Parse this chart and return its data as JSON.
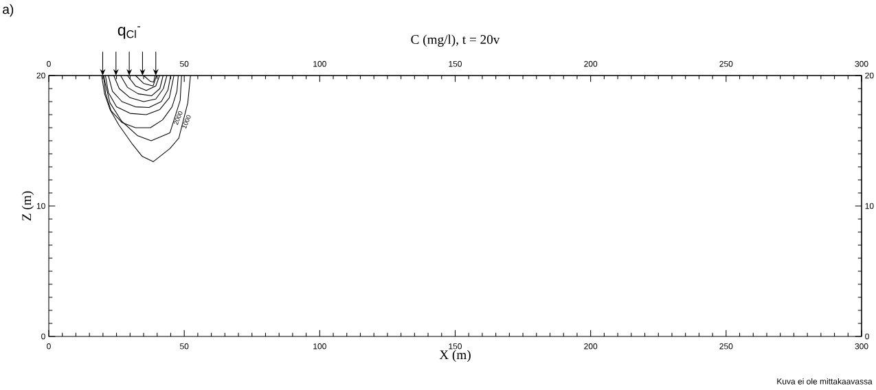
{
  "chart_data": {
    "type": "line",
    "title": "C (mg/l), t = 20v",
    "xlabel": "X (m)",
    "ylabel": "Z (m)",
    "xlim": [
      0,
      300
    ],
    "xticks": [
      0,
      50,
      100,
      150,
      200,
      250,
      300
    ],
    "x2lim": [
      0,
      300
    ],
    "x2ticks": [
      0,
      50,
      100,
      150,
      200,
      250,
      300
    ],
    "ylim": [
      0,
      20
    ],
    "yticks": [
      0,
      10,
      20
    ],
    "y2lim": [
      0,
      20
    ],
    "y2ticks": [
      0,
      10,
      20
    ],
    "legend": false,
    "grid": false,
    "marker": "none",
    "line_style": "solid",
    "annotations": [
      "a)",
      {
        "text": "q$_{Cl}$$^{-}$",
        "x": 29.7,
        "y": 20
      },
      "Kuva ei ole mittakaavassa"
    ],
    "series": [
      {
        "name": "1000",
        "color": "#000000",
        "x": [
          19.5,
          20.6,
          22.6,
          25.9,
          31,
          34.5,
          38.6,
          44.7,
          48,
          51.3,
          52.3
        ],
        "values": [
          20,
          18.6,
          17.4,
          16.2,
          14.7,
          13.8,
          13.4,
          14.4,
          15.2,
          17.9,
          20
        ]
      },
      {
        "name": "2000",
        "color": "#000000",
        "x": [
          20.3,
          20.6,
          22.6,
          26.9,
          32.7,
          37.8,
          44.7,
          48.5,
          49
        ],
        "values": [
          20,
          19.6,
          17.9,
          16.5,
          15.4,
          15.0,
          15.6,
          18.1,
          20
        ]
      },
      {
        "color": "#000000",
        "x": [
          20.2,
          21,
          23,
          27,
          32,
          37.5,
          42,
          45.5,
          47.3,
          47.8
        ],
        "values": [
          20,
          18.6,
          17.3,
          16.4,
          16.0,
          16.0,
          16.6,
          17.6,
          18.8,
          20
        ]
      },
      {
        "color": "#000000",
        "x": [
          20.9,
          22,
          25,
          30,
          36,
          41,
          44.5,
          46.2
        ],
        "values": [
          20,
          18.7,
          17.6,
          17.1,
          17.0,
          17.4,
          18.3,
          20
        ]
      },
      {
        "color": "#000000",
        "x": [
          22,
          23.5,
          27,
          32,
          37,
          41.5,
          44,
          45
        ],
        "values": [
          20,
          18.8,
          18.0,
          17.6,
          17.55,
          18.0,
          18.9,
          20
        ]
      },
      {
        "color": "#000000",
        "x": [
          24,
          26,
          30,
          35,
          39.5,
          42.3,
          43.6
        ],
        "values": [
          20,
          19.0,
          18.3,
          18.0,
          18.2,
          19.0,
          20
        ]
      },
      {
        "color": "#000000",
        "x": [
          26.5,
          29,
          33,
          38,
          41,
          42.2
        ],
        "values": [
          20,
          19.1,
          18.6,
          18.45,
          19.0,
          20
        ]
      },
      {
        "color": "#000000",
        "x": [
          29,
          32,
          36,
          39.5,
          40.9
        ],
        "values": [
          20,
          19.2,
          18.85,
          19.2,
          20
        ]
      },
      {
        "color": "#000000",
        "x": [
          32,
          35,
          38.5,
          39.8
        ],
        "values": [
          20,
          19.4,
          19.2,
          20
        ]
      },
      {
        "color": "#000000",
        "x": [
          35,
          37.5,
          38.7,
          39.2
        ],
        "values": [
          20,
          19.55,
          19.5,
          20
        ]
      }
    ]
  }
}
